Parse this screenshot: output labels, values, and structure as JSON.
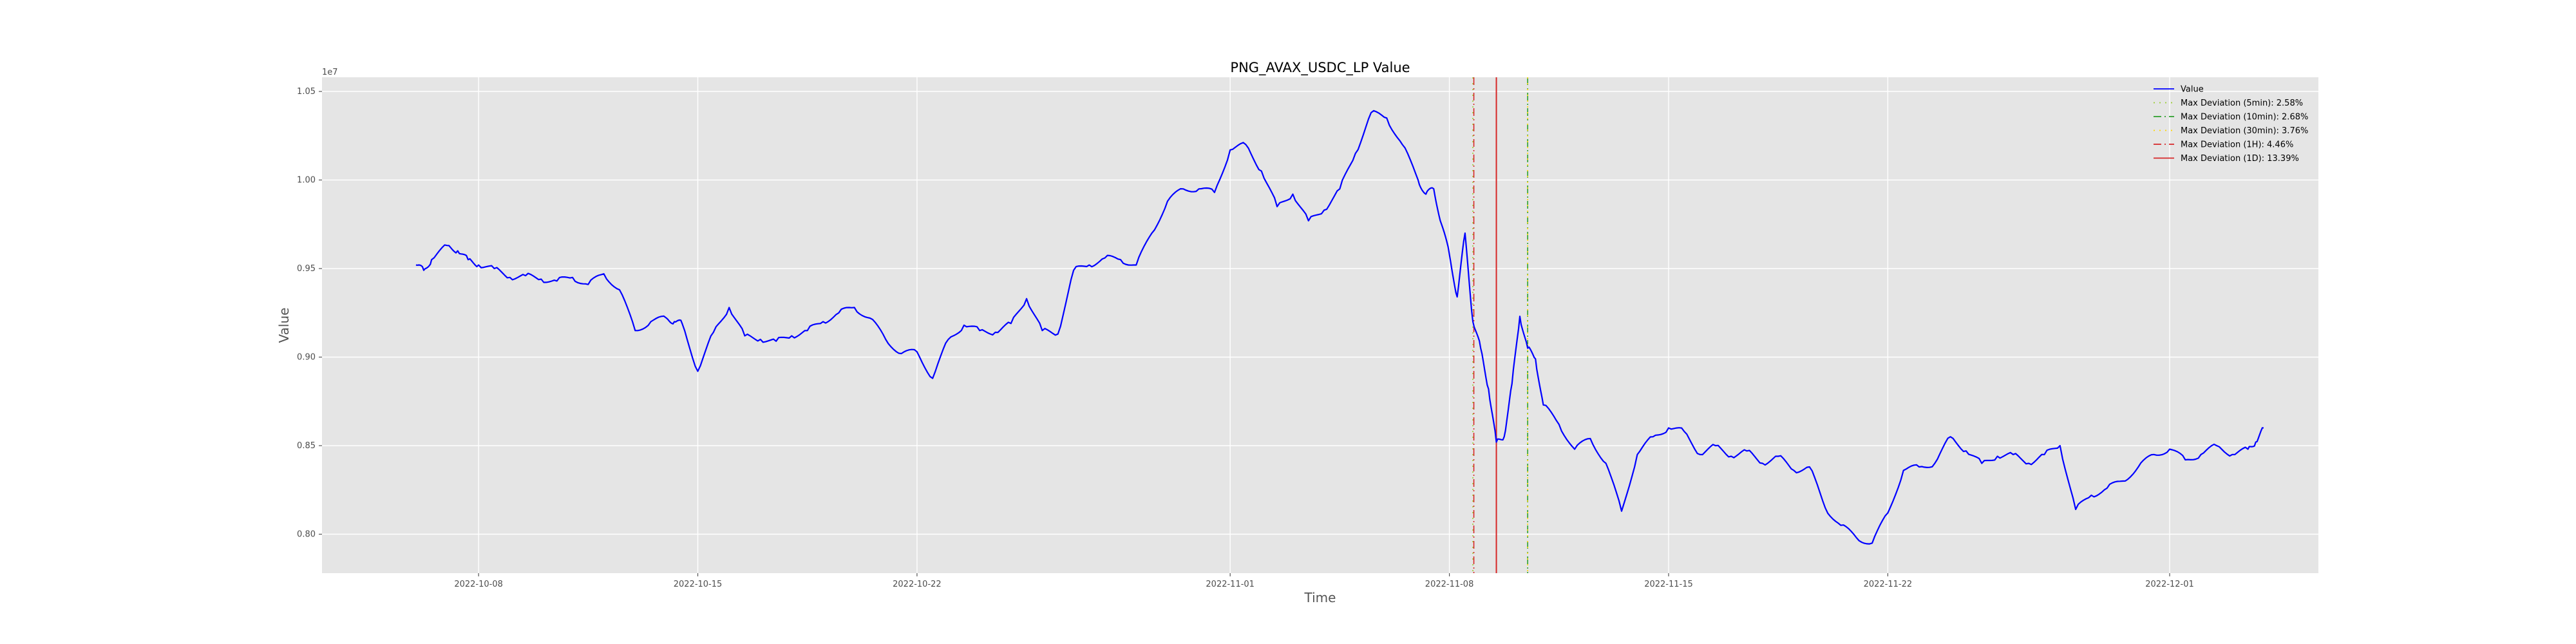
{
  "chart_data": {
    "type": "line",
    "title": "PNG_AVAX_USDC_LP Value",
    "xlabel": "Time",
    "ylabel": "Value",
    "y_scale_label": "1e7",
    "xlim": [
      "2022-10-03",
      "2022-12-05T18:00"
    ],
    "ylim": [
      7.78,
      10.58
    ],
    "x_ticks": [
      "2022-10-08",
      "2022-10-15",
      "2022-10-22",
      "2022-11-01",
      "2022-11-08",
      "2022-11-15",
      "2022-11-22",
      "2022-12-01"
    ],
    "y_ticks": [
      "0.80",
      "0.85",
      "0.90",
      "0.95",
      "1.00",
      "1.05"
    ],
    "grid": true,
    "legend_position": "upper right",
    "series": [
      {
        "name": "Value",
        "color": "#0000ff",
        "x": [
          "2022-10-06T00:00",
          "2022-10-06T06:00",
          "2022-10-06T12:00",
          "2022-10-07T00:00",
          "2022-10-07T08:00",
          "2022-10-07T16:00",
          "2022-10-08T00:00",
          "2022-10-08T12:00",
          "2022-10-09T00:00",
          "2022-10-09T12:00",
          "2022-10-10T00:00",
          "2022-10-10T12:00",
          "2022-10-11T00:00",
          "2022-10-11T12:00",
          "2022-10-12T00:00",
          "2022-10-12T12:00",
          "2022-10-13T00:00",
          "2022-10-13T12:00",
          "2022-10-14T00:00",
          "2022-10-14T06:00",
          "2022-10-14T12:00",
          "2022-10-15T00:00",
          "2022-10-15T12:00",
          "2022-10-16T00:00",
          "2022-10-16T12:00",
          "2022-10-17T00:00",
          "2022-10-17T12:00",
          "2022-10-18T00:00",
          "2022-10-18T12:00",
          "2022-10-19T00:00",
          "2022-10-19T12:00",
          "2022-10-20T00:00",
          "2022-10-20T12:00",
          "2022-10-21T00:00",
          "2022-10-21T12:00",
          "2022-10-22T00:00",
          "2022-10-22T12:00",
          "2022-10-23T00:00",
          "2022-10-23T12:00",
          "2022-10-24T00:00",
          "2022-10-24T12:00",
          "2022-10-25T00:00",
          "2022-10-25T12:00",
          "2022-10-26T00:00",
          "2022-10-26T12:00",
          "2022-10-27T00:00",
          "2022-10-27T12:00",
          "2022-10-28T00:00",
          "2022-10-28T12:00",
          "2022-10-29T00:00",
          "2022-10-29T12:00",
          "2022-10-30T00:00",
          "2022-10-30T12:00",
          "2022-10-31T00:00",
          "2022-10-31T12:00",
          "2022-11-01T00:00",
          "2022-11-01T12:00",
          "2022-11-02T00:00",
          "2022-11-02T12:00",
          "2022-11-03T00:00",
          "2022-11-03T12:00",
          "2022-11-04T00:00",
          "2022-11-04T12:00",
          "2022-11-05T00:00",
          "2022-11-05T12:00",
          "2022-11-06T00:00",
          "2022-11-06T12:00",
          "2022-11-07T00:00",
          "2022-11-07T06:00",
          "2022-11-07T12:00",
          "2022-11-07T18:00",
          "2022-11-08T00:00",
          "2022-11-08T06:00",
          "2022-11-08T12:00",
          "2022-11-08T18:00",
          "2022-11-09T00:00",
          "2022-11-09T06:00",
          "2022-11-09T12:00",
          "2022-11-09T18:00",
          "2022-11-10T00:00",
          "2022-11-10T06:00",
          "2022-11-10T12:00",
          "2022-11-10T18:00",
          "2022-11-11T00:00",
          "2022-11-11T12:00",
          "2022-11-12T00:00",
          "2022-11-12T12:00",
          "2022-11-13T00:00",
          "2022-11-13T12:00",
          "2022-11-14T00:00",
          "2022-11-14T12:00",
          "2022-11-15T00:00",
          "2022-11-15T12:00",
          "2022-11-16T00:00",
          "2022-11-16T12:00",
          "2022-11-17T00:00",
          "2022-11-17T12:00",
          "2022-11-18T00:00",
          "2022-11-18T12:00",
          "2022-11-19T00:00",
          "2022-11-19T12:00",
          "2022-11-20T00:00",
          "2022-11-20T12:00",
          "2022-11-21T00:00",
          "2022-11-21T12:00",
          "2022-11-22T00:00",
          "2022-11-22T12:00",
          "2022-11-23T00:00",
          "2022-11-23T12:00",
          "2022-11-24T00:00",
          "2022-11-24T12:00",
          "2022-11-25T00:00",
          "2022-11-25T12:00",
          "2022-11-26T00:00",
          "2022-11-26T12:00",
          "2022-11-27T00:00",
          "2022-11-27T12:00",
          "2022-11-28T00:00",
          "2022-11-28T12:00",
          "2022-11-29T00:00",
          "2022-11-29T12:00",
          "2022-11-30T00:00",
          "2022-11-30T12:00",
          "2022-12-01T00:00",
          "2022-12-01T12:00",
          "2022-12-02T00:00",
          "2022-12-02T12:00",
          "2022-12-03T00:00",
          "2022-12-03T12:00",
          "2022-12-03T18:00",
          "2022-12-04T00:00"
        ],
        "y": [
          9.52,
          9.49,
          9.55,
          9.63,
          9.6,
          9.55,
          9.52,
          9.5,
          9.45,
          9.46,
          9.44,
          9.43,
          9.45,
          9.41,
          9.47,
          9.38,
          9.15,
          9.2,
          9.22,
          9.2,
          9.19,
          8.92,
          9.14,
          9.28,
          9.12,
          9.1,
          9.09,
          9.12,
          9.15,
          9.2,
          9.25,
          9.28,
          9.22,
          9.1,
          9.02,
          9.03,
          8.88,
          9.1,
          9.18,
          9.15,
          9.14,
          9.19,
          9.33,
          9.15,
          9.13,
          9.49,
          9.52,
          9.56,
          9.55,
          9.52,
          9.7,
          9.88,
          9.95,
          9.95,
          9.93,
          10.17,
          10.2,
          10.05,
          9.85,
          9.92,
          9.77,
          9.83,
          9.95,
          10.15,
          10.38,
          10.35,
          10.2,
          10.0,
          9.92,
          9.95,
          9.75,
          9.58,
          9.34,
          9.7,
          9.2,
          9.05,
          8.82,
          8.52,
          8.55,
          8.85,
          9.23,
          9.05,
          8.99,
          8.73,
          8.62,
          8.48,
          8.54,
          8.4,
          8.13,
          8.45,
          8.55,
          8.6,
          8.58,
          8.45,
          8.5,
          8.44,
          8.47,
          8.4,
          8.44,
          8.36,
          8.38,
          8.15,
          8.05,
          7.98,
          7.95,
          8.12,
          8.36,
          8.38,
          8.4,
          8.55,
          8.47,
          8.4,
          8.44,
          8.45,
          8.4,
          8.45,
          8.5,
          8.14,
          8.22,
          8.26,
          8.3,
          8.38,
          8.45,
          8.48,
          8.42,
          8.45,
          8.5,
          8.45,
          8.48,
          8.52,
          8.6
        ]
      }
    ],
    "vlines": [
      {
        "name": "Max Deviation (5min): 2.58%",
        "x": "2022-11-08T18:00",
        "color": "#9acd32",
        "dash": "dotted"
      },
      {
        "name": "Max Deviation (10min): 2.68%",
        "x": "2022-11-10T12:00",
        "color": "#2ca02c",
        "dash": "dashdot"
      },
      {
        "name": "Max Deviation (30min): 3.76%",
        "x": "2022-11-10T12:00",
        "color": "#ffd700",
        "dash": "dotted"
      },
      {
        "name": "Max Deviation (1H): 4.46%",
        "x": "2022-11-08T18:00",
        "color": "#d62728",
        "dash": "dashdot"
      },
      {
        "name": "Max Deviation (1D): 13.39%",
        "x": "2022-11-09T12:00",
        "color": "#d62728",
        "dash": "solid"
      }
    ]
  }
}
